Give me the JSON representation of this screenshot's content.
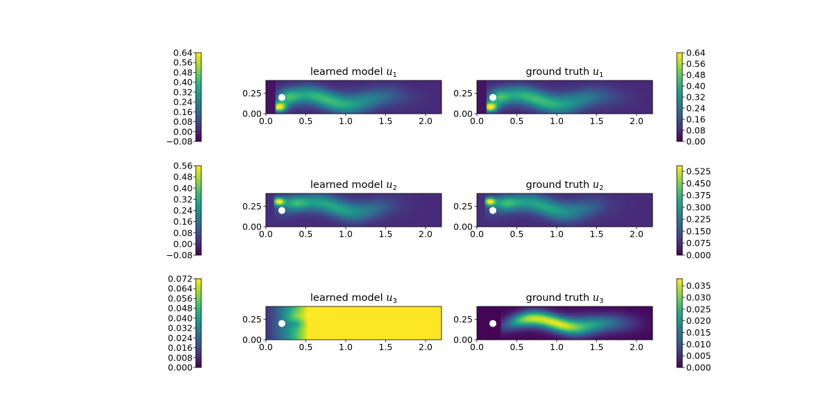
{
  "figure": {
    "background": "#ffffff"
  },
  "colormap": {
    "name": "viridis",
    "stops": [
      "#440154",
      "#482878",
      "#3e4989",
      "#31688e",
      "#26828e",
      "#1f9e89",
      "#35b779",
      "#6ece58",
      "#b5de2b",
      "#fde725"
    ]
  },
  "chart_data": [
    {
      "type": "heatmap",
      "title_main": "learned model ",
      "title_var": "u",
      "title_sub": "1",
      "xlim": [
        0,
        2.2
      ],
      "ylim": [
        0,
        0.41
      ],
      "xticks": [
        "0.0",
        "0.5",
        "1.0",
        "1.5",
        "2.0"
      ],
      "yticks": [
        "0.00",
        "0.25"
      ],
      "obstacle": {
        "center": [
          0.2,
          0.2
        ],
        "radius": 0.05,
        "color": "#ffffff"
      },
      "field": "wake_u1",
      "vmin": -0.08,
      "vmax": 0.64,
      "colorbar": {
        "side": "left",
        "ticks": [
          "0.64",
          "0.56",
          "0.48",
          "0.40",
          "0.32",
          "0.24",
          "0.16",
          "0.08",
          "0.00",
          "−0.08"
        ]
      }
    },
    {
      "type": "heatmap",
      "title_main": "ground truth ",
      "title_var": "u",
      "title_sub": "1",
      "xlim": [
        0,
        2.2
      ],
      "ylim": [
        0,
        0.41
      ],
      "xticks": [
        "0.0",
        "0.5",
        "1.0",
        "1.5",
        "2.0"
      ],
      "yticks": [
        "0.00",
        "0.25"
      ],
      "obstacle": {
        "center": [
          0.2,
          0.2
        ],
        "radius": 0.05,
        "color": "#ffffff"
      },
      "field": "wake_u1",
      "vmin": 0.0,
      "vmax": 0.64,
      "colorbar": {
        "side": "right",
        "ticks": [
          "0.64",
          "0.56",
          "0.48",
          "0.40",
          "0.32",
          "0.24",
          "0.16",
          "0.08",
          "0.00"
        ]
      }
    },
    {
      "type": "heatmap",
      "title_main": "learned model ",
      "title_var": "u",
      "title_sub": "2",
      "xlim": [
        0,
        2.2
      ],
      "ylim": [
        0,
        0.41
      ],
      "xticks": [
        "0.0",
        "0.5",
        "1.0",
        "1.5",
        "2.0"
      ],
      "yticks": [
        "0.00",
        "0.25"
      ],
      "obstacle": {
        "center": [
          0.2,
          0.2
        ],
        "radius": 0.05,
        "color": "#ffffff"
      },
      "field": "wake_u2",
      "vmin": -0.08,
      "vmax": 0.56,
      "colorbar": {
        "side": "left",
        "ticks": [
          "0.56",
          "0.48",
          "0.40",
          "0.32",
          "0.24",
          "0.16",
          "0.08",
          "0.00",
          "−0.08"
        ]
      }
    },
    {
      "type": "heatmap",
      "title_main": "ground truth ",
      "title_var": "u",
      "title_sub": "2",
      "xlim": [
        0,
        2.2
      ],
      "ylim": [
        0,
        0.41
      ],
      "xticks": [
        "0.0",
        "0.5",
        "1.0",
        "1.5",
        "2.0"
      ],
      "yticks": [
        "0.00",
        "0.25"
      ],
      "obstacle": {
        "center": [
          0.2,
          0.2
        ],
        "radius": 0.05,
        "color": "#ffffff"
      },
      "field": "wake_u2",
      "vmin": 0.0,
      "vmax": 0.56,
      "colorbar": {
        "side": "right",
        "ticks": [
          "0.525",
          "0.450",
          "0.375",
          "0.300",
          "0.225",
          "0.150",
          "0.075",
          "0.000"
        ]
      }
    },
    {
      "type": "heatmap",
      "title_main": "learned model ",
      "title_var": "u",
      "title_sub": "3",
      "xlim": [
        0,
        2.2
      ],
      "ylim": [
        0,
        0.41
      ],
      "xticks": [
        "0.0",
        "0.5",
        "1.0",
        "1.5",
        "2.0"
      ],
      "yticks": [
        "0.00",
        "0.25"
      ],
      "obstacle": {
        "center": [
          0.2,
          0.2
        ],
        "radius": 0.05,
        "color": "#ffffff"
      },
      "field": "learned_u3",
      "vmin": 0.0,
      "vmax": 0.072,
      "colorbar": {
        "side": "left",
        "ticks": [
          "0.072",
          "0.064",
          "0.056",
          "0.048",
          "0.040",
          "0.032",
          "0.024",
          "0.016",
          "0.008",
          "0.000"
        ]
      }
    },
    {
      "type": "heatmap",
      "title_main": "ground truth ",
      "title_var": "u",
      "title_sub": "3",
      "xlim": [
        0,
        2.2
      ],
      "ylim": [
        0,
        0.41
      ],
      "xticks": [
        "0.0",
        "0.5",
        "1.0",
        "1.5",
        "2.0"
      ],
      "yticks": [
        "0.00",
        "0.25"
      ],
      "obstacle": {
        "center": [
          0.2,
          0.2
        ],
        "radius": 0.05,
        "color": "#ffffff"
      },
      "field": "truth_u3",
      "vmin": 0.0,
      "vmax": 0.038,
      "colorbar": {
        "side": "right",
        "ticks": [
          "0.035",
          "0.030",
          "0.025",
          "0.020",
          "0.015",
          "0.010",
          "0.005",
          "0.000"
        ]
      }
    }
  ]
}
